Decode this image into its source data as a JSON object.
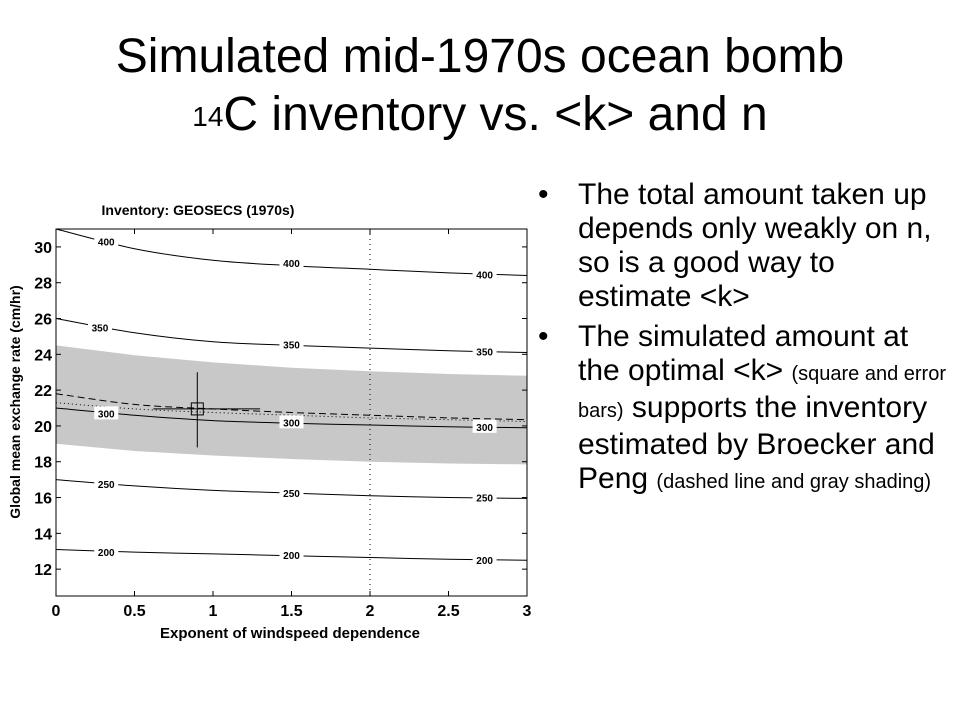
{
  "title": {
    "line1": "Simulated mid-1970s ocean bomb",
    "sup": "14",
    "line2": "C inventory vs. <k> and n"
  },
  "bullets": [
    {
      "text": "The total amount taken up depends only weakly on n, so is a good way to estimate <k>"
    },
    {
      "part1": "The simulated amount at the optimal <k>",
      "small1": "(square and error bars)",
      "part2": "supports the inventory estimated by Broecker and Peng",
      "small2": "(dashed line and gray shading)"
    }
  ],
  "chart_data": {
    "type": "line",
    "title": "Inventory: GEOSECS (1970s)",
    "xlabel": "Exponent of windspeed dependence",
    "ylabel": "Global mean exchange rate (cm/hr)",
    "xlim": [
      0,
      3
    ],
    "ylim": [
      10.5,
      31
    ],
    "xticks": [
      0,
      0.5,
      1,
      1.5,
      2,
      2.5,
      3
    ],
    "xtick_labels": [
      "0",
      "0.5",
      "1",
      "1.5",
      "2",
      "2.5",
      "3"
    ],
    "yticks": [
      12,
      14,
      16,
      18,
      20,
      22,
      24,
      26,
      28,
      30
    ],
    "ytick_labels": [
      "12",
      "14",
      "16",
      "18",
      "20",
      "22",
      "24",
      "26",
      "28",
      "30"
    ],
    "grid": false,
    "x": [
      0,
      0.5,
      1,
      1.5,
      2,
      2.5,
      3
    ],
    "series": [
      {
        "name": "200",
        "values": [
          13.1,
          12.95,
          12.85,
          12.75,
          12.65,
          12.55,
          12.5
        ]
      },
      {
        "name": "250",
        "values": [
          17.0,
          16.65,
          16.4,
          16.25,
          16.1,
          16.0,
          15.95
        ]
      },
      {
        "name": "300",
        "values": [
          21.0,
          20.6,
          20.3,
          20.15,
          20.05,
          19.95,
          19.9
        ]
      },
      {
        "name": "350",
        "values": [
          26.0,
          25.2,
          24.7,
          24.5,
          24.35,
          24.2,
          24.1
        ]
      },
      {
        "name": "400",
        "values": [
          31.0,
          29.9,
          29.25,
          28.95,
          28.75,
          28.55,
          28.4
        ]
      }
    ],
    "contour_labels": [
      {
        "text": "400",
        "x": 0.32,
        "y": 30.3
      },
      {
        "text": "400",
        "x": 1.5,
        "y": 29.1
      },
      {
        "text": "400",
        "x": 2.73,
        "y": 28.45
      },
      {
        "text": "350",
        "x": 0.28,
        "y": 25.5
      },
      {
        "text": "350",
        "x": 1.5,
        "y": 24.55
      },
      {
        "text": "350",
        "x": 2.73,
        "y": 24.15
      },
      {
        "text": "300",
        "x": 0.32,
        "y": 20.7
      },
      {
        "text": "300",
        "x": 1.5,
        "y": 20.2
      },
      {
        "text": "300",
        "x": 2.73,
        "y": 19.95
      },
      {
        "text": "250",
        "x": 0.32,
        "y": 16.75
      },
      {
        "text": "250",
        "x": 1.5,
        "y": 16.25
      },
      {
        "text": "250",
        "x": 2.73,
        "y": 16.0
      },
      {
        "text": "200",
        "x": 0.32,
        "y": 12.95
      },
      {
        "text": "200",
        "x": 1.5,
        "y": 12.8
      },
      {
        "text": "200",
        "x": 2.73,
        "y": 12.5
      }
    ],
    "shading": {
      "upper": [
        24.5,
        23.95,
        23.55,
        23.25,
        23.05,
        22.9,
        22.8
      ],
      "lower": [
        19.0,
        18.6,
        18.35,
        18.15,
        18.0,
        17.9,
        17.85
      ]
    },
    "dashed_line": [
      21.8,
      21.2,
      20.95,
      20.75,
      20.6,
      20.45,
      20.35
    ],
    "dotted_line": [
      21.3,
      20.95,
      20.75,
      20.6,
      20.45,
      20.35,
      20.25
    ],
    "vertical_dotted_x": 2.0,
    "optimal_point": {
      "x": 0.9,
      "y": 20.95,
      "x_err": [
        0.62,
        1.3
      ],
      "y_err": [
        18.8,
        23.0
      ]
    }
  }
}
